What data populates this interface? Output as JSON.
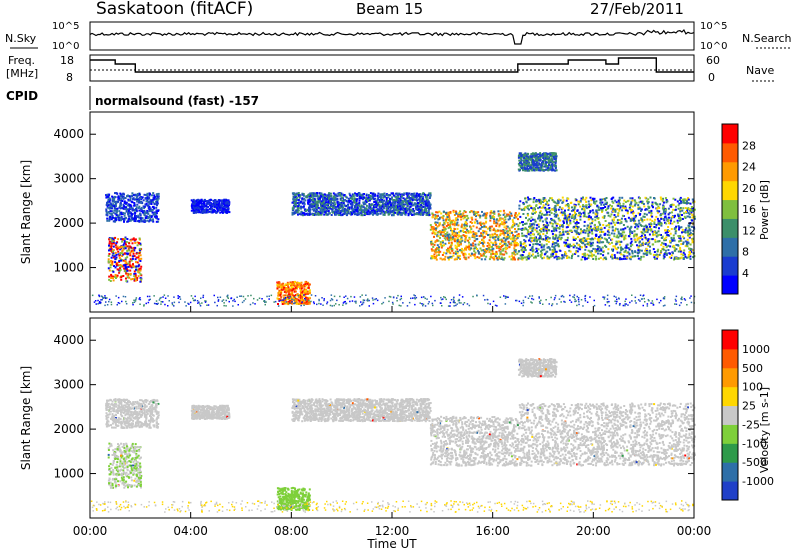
{
  "header": {
    "station": "Saskatoon (fitACF)",
    "beam": "Beam 15",
    "date": "27/Feb/2011"
  },
  "strip1": {
    "left_label": "N.Sky",
    "right_label": "N.Search",
    "ticks_left": [
      "10^5",
      "10^0"
    ],
    "ticks_right": [
      "10^5",
      "10^0"
    ]
  },
  "strip2": {
    "left_label_1": "Freq.",
    "left_label_2": "[MHz]",
    "right_label": "Nave",
    "ticks_left": [
      "18",
      "8"
    ],
    "ticks_right": [
      "60",
      "0"
    ]
  },
  "cpid": {
    "label": "CPID",
    "text": "normalsound (fast) -157"
  },
  "colors": {
    "power_scale": [
      "#0000ff",
      "#1a3ccf",
      "#2e6fa8",
      "#3c8f6a",
      "#7fbf3f",
      "#ffd700",
      "#ff9a00",
      "#ff5a00",
      "#ff0000"
    ],
    "velocity_scale": [
      "#2040c8",
      "#2e6fa8",
      "#2e9a4a",
      "#7ed03a",
      "#c8c8c8",
      "#ffd700",
      "#ff9a00",
      "#ff5a00",
      "#ff0000"
    ]
  },
  "chart_data": [
    {
      "type": "heatmap",
      "panel": "power",
      "ylabel": "Slant Range [km]",
      "ylim": [
        0,
        4500
      ],
      "yticks": [
        "1000",
        "2000",
        "3000",
        "4000"
      ],
      "xticks": [
        "00:00",
        "04:00",
        "08:00",
        "12:00",
        "16:00",
        "20:00",
        "00:00"
      ],
      "colorbar_label": "Power [dB]",
      "colorbar_ticks": [
        "4",
        "8",
        "12",
        "16",
        "20",
        "24",
        "28"
      ]
    },
    {
      "type": "heatmap",
      "panel": "velocity",
      "ylabel": "Slant Range [km]",
      "ylim": [
        0,
        4500
      ],
      "yticks": [
        "1000",
        "2000",
        "3000",
        "4000"
      ],
      "xticks": [
        "00:00",
        "04:00",
        "08:00",
        "12:00",
        "16:00",
        "20:00",
        "00:00"
      ],
      "xlabel": "Time UT",
      "colorbar_label": "Velocity [m s-1]",
      "colorbar_ticks": [
        "1000",
        "500",
        "100",
        "25",
        "-25",
        "-100",
        "-500",
        "-1000"
      ]
    }
  ]
}
